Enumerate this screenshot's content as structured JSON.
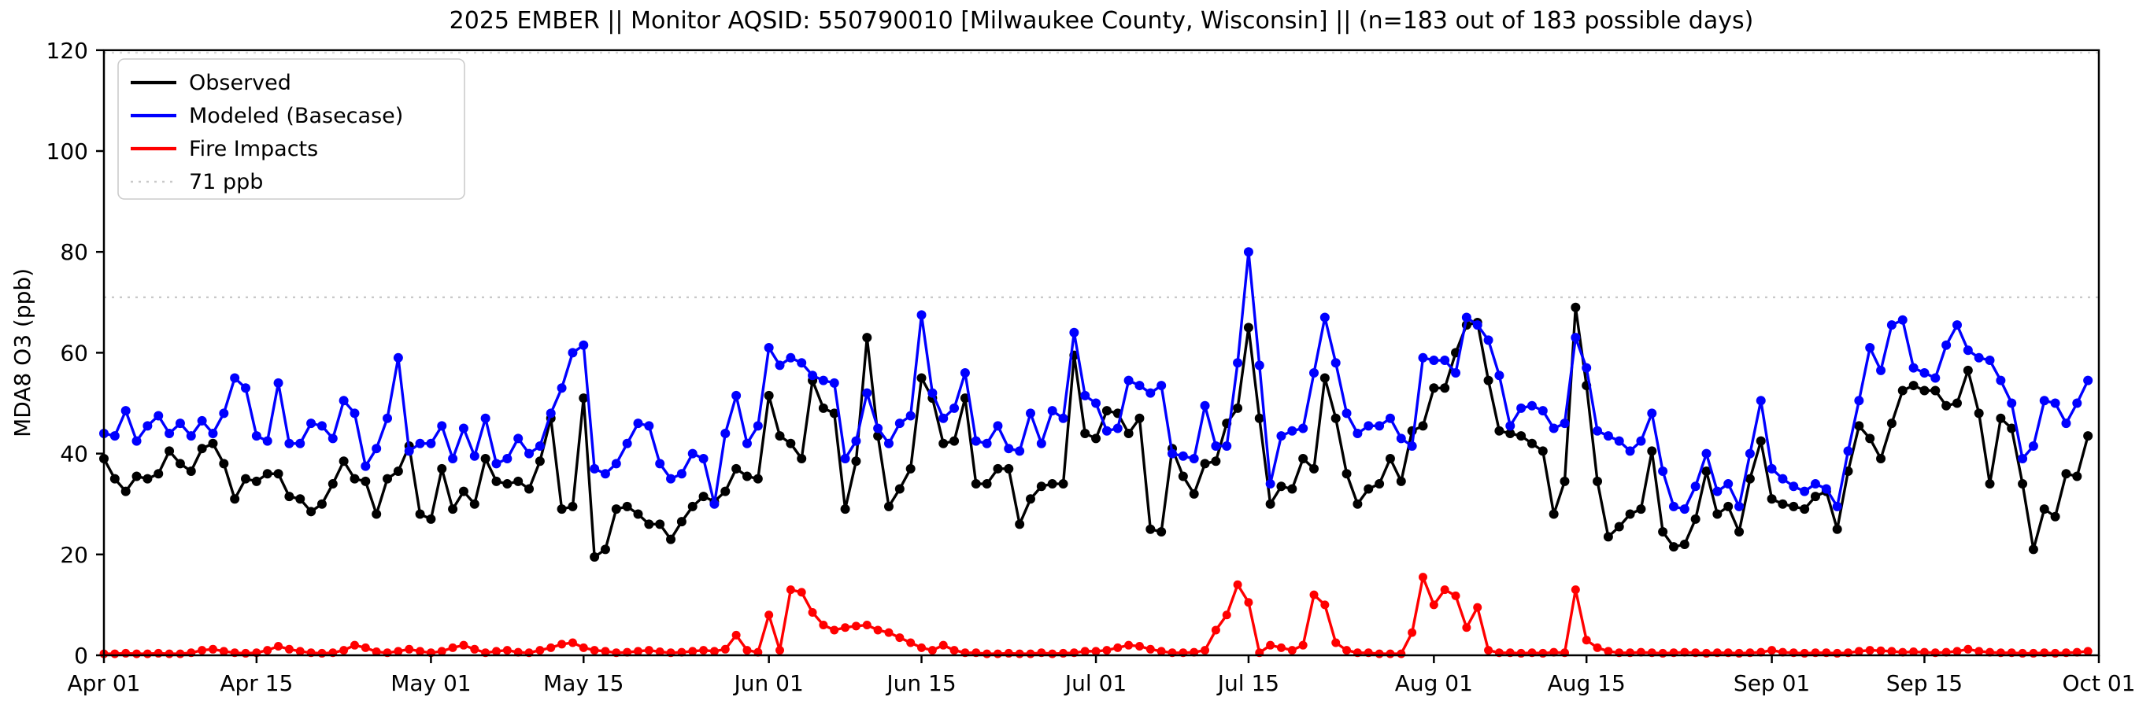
{
  "title": "2025 EMBER || Monitor AQSID: 550790010 [Milwaukee County, Wisconsin] || (n=183 out of 183 possible days)",
  "ylabel": "MDA8 O3 (ppb)",
  "legend": {
    "items": [
      {
        "label": "Observed",
        "color": "#000000",
        "style": "solid"
      },
      {
        "label": "Modeled (Basecase)",
        "color": "#0000ff",
        "style": "solid"
      },
      {
        "label": "Fire Impacts",
        "color": "#ff0000",
        "style": "solid"
      },
      {
        "label": "71 ppb",
        "color": "#c9c9c9",
        "style": "dotted"
      }
    ]
  },
  "chart_data": {
    "type": "line",
    "title": "2025 EMBER || Monitor AQSID: 550790010 [Milwaukee County, Wisconsin] || (n=183 out of 183 possible days)",
    "xlabel": "",
    "ylabel": "MDA8 O3 (ppb)",
    "ylim": [
      0,
      120
    ],
    "yticks": [
      0,
      20,
      40,
      60,
      80,
      100,
      120
    ],
    "x_start_date": "2025-04-01",
    "x_end_date": "2025-09-30",
    "n_days": 183,
    "xticks": [
      {
        "day": 0,
        "label": "Apr 01"
      },
      {
        "day": 14,
        "label": "Apr 15"
      },
      {
        "day": 30,
        "label": "May 01"
      },
      {
        "day": 44,
        "label": "May 15"
      },
      {
        "day": 61,
        "label": "Jun 01"
      },
      {
        "day": 75,
        "label": "Jun 15"
      },
      {
        "day": 91,
        "label": "Jul 01"
      },
      {
        "day": 105,
        "label": "Jul 15"
      },
      {
        "day": 122,
        "label": "Aug 01"
      },
      {
        "day": 136,
        "label": "Aug 15"
      },
      {
        "day": 153,
        "label": "Sep 01"
      },
      {
        "day": 167,
        "label": "Sep 15"
      },
      {
        "day": 183,
        "label": "Oct 01"
      }
    ],
    "threshold_line": {
      "value": 71,
      "label": "71 ppb",
      "color": "#c9c9c9",
      "style": "dotted"
    },
    "top_dotted_line": {
      "value": 119.5,
      "color": "#d9d9d9",
      "style": "dotted"
    },
    "grid": false,
    "legend_position": "upper left",
    "series": [
      {
        "name": "Observed",
        "color": "#000000",
        "values": [
          39,
          35,
          32.5,
          35.5,
          35,
          36,
          40.5,
          38,
          36.5,
          41,
          42,
          38,
          31,
          35,
          34.5,
          36,
          36,
          31.5,
          31,
          28.5,
          30,
          34,
          38.5,
          35,
          34.5,
          28,
          35,
          36.5,
          41.5,
          28,
          27,
          37,
          29,
          32.5,
          30,
          39,
          34.5,
          34,
          34.5,
          33,
          38.5,
          47,
          29,
          29.5,
          51,
          19.5,
          21,
          29,
          29.5,
          28,
          26,
          26,
          23,
          26.5,
          29.5,
          31.5,
          30.5,
          32.5,
          37,
          35.5,
          35,
          51.5,
          43.5,
          42,
          39,
          54.5,
          49,
          48,
          29,
          38.5,
          63,
          43.5,
          29.5,
          33,
          37,
          55,
          51,
          42,
          42.5,
          51,
          34,
          34,
          37,
          37,
          26,
          31,
          33.5,
          34,
          34,
          59.5,
          44,
          43,
          48.5,
          48,
          44,
          47,
          25,
          24.5,
          41,
          35.5,
          32,
          38,
          38.5,
          46,
          49,
          65,
          47,
          30,
          33.5,
          33,
          39,
          37,
          55,
          47,
          36,
          30,
          33,
          34,
          39,
          34.5,
          44.5,
          45.5,
          53,
          53,
          60,
          65.5,
          66,
          54.5,
          44.5,
          44,
          43.5,
          42,
          40.5,
          28,
          34.5,
          69,
          53.5,
          34.5,
          23.5,
          25.5,
          28,
          29,
          40.5,
          24.5,
          21.5,
          22,
          27,
          36.5,
          28,
          29.5,
          24.5,
          35,
          42.5,
          31,
          30,
          29.5,
          29,
          31.5,
          32.5,
          25,
          36.5,
          45.5,
          43,
          39,
          46,
          52.5,
          53.5,
          52.5,
          52.5,
          49.5,
          50,
          56.5,
          48,
          34,
          47,
          45,
          34,
          21,
          29,
          27.5,
          36,
          35.5,
          43.5
        ]
      },
      {
        "name": "Modeled (Basecase)",
        "color": "#0000ff",
        "values": [
          44,
          43.5,
          48.5,
          42.5,
          45.5,
          47.5,
          44,
          46,
          43.5,
          46.5,
          44,
          48,
          55,
          53,
          43.5,
          42.5,
          54,
          42,
          42,
          46,
          45.5,
          43,
          50.5,
          48,
          37.5,
          41,
          47,
          59,
          40.5,
          42,
          42,
          45.5,
          39,
          45,
          39.5,
          47,
          38,
          39,
          43,
          40,
          41.5,
          48,
          53,
          60,
          61.5,
          37,
          36,
          38,
          42,
          46,
          45.5,
          38,
          35,
          36,
          40,
          39,
          30,
          44,
          51.5,
          42,
          45.5,
          61,
          57.5,
          59,
          58,
          55.5,
          54.5,
          54,
          39,
          42.5,
          52,
          45,
          42,
          46,
          47.5,
          67.5,
          52,
          47,
          49,
          56,
          42.5,
          42,
          45.5,
          41,
          40.5,
          48,
          42,
          48.5,
          47,
          64,
          51.5,
          50,
          44.5,
          45,
          54.5,
          53.5,
          52,
          53.5,
          40,
          39.5,
          39,
          49.5,
          41.5,
          41.5,
          58,
          80,
          57.5,
          34,
          43.5,
          44.5,
          45,
          56,
          67,
          58,
          48,
          44,
          45.5,
          45.5,
          47,
          43,
          41.5,
          59,
          58.5,
          58.5,
          56,
          67,
          65.5,
          62.5,
          55.5,
          45.5,
          49,
          49.5,
          48.5,
          45,
          46,
          63,
          57,
          44.5,
          43.5,
          42.5,
          40.5,
          42.5,
          48,
          36.5,
          29.5,
          29,
          33.5,
          40,
          32.5,
          34,
          29.5,
          40,
          50.5,
          37,
          35,
          33.5,
          32.5,
          34,
          33,
          29.5,
          40.5,
          50.5,
          61,
          56.5,
          65.5,
          66.5,
          57,
          56,
          55,
          61.5,
          65.5,
          60.5,
          59,
          58.5,
          54.5,
          50,
          39,
          41.5,
          50.5,
          50,
          46,
          50,
          54.5
        ]
      },
      {
        "name": "Fire Impacts",
        "color": "#ff0000",
        "values": [
          0.3,
          0.3,
          0.4,
          0.3,
          0.3,
          0.4,
          0.3,
          0.3,
          0.5,
          1,
          1.2,
          0.8,
          0.5,
          0.4,
          0.5,
          1,
          1.8,
          1.2,
          0.8,
          0.5,
          0.4,
          0.5,
          1,
          2,
          1.5,
          0.7,
          0.5,
          0.8,
          1.2,
          0.8,
          0.5,
          0.8,
          1.5,
          2,
          1.2,
          0.5,
          0.8,
          1,
          0.6,
          0.5,
          1,
          1.5,
          2.2,
          2.5,
          1.5,
          1,
          0.8,
          0.5,
          0.6,
          0.8,
          1,
          0.7,
          0.5,
          0.6,
          0.8,
          1,
          0.8,
          1.2,
          4,
          1,
          0.6,
          8,
          1,
          13,
          12.5,
          8.5,
          6,
          5,
          5.5,
          5.8,
          6,
          5,
          4.5,
          3.5,
          2.5,
          1.5,
          1,
          2,
          1,
          0.5,
          0.5,
          0.3,
          0.3,
          0.4,
          0.3,
          0.3,
          0.5,
          0.3,
          0.4,
          0.5,
          0.8,
          0.8,
          1,
          1.5,
          2,
          1.8,
          1.2,
          0.8,
          0.5,
          0.5,
          0.6,
          1,
          5,
          8,
          14,
          10.5,
          0.5,
          2,
          1.5,
          1,
          2,
          12,
          10,
          2.5,
          1,
          0.5,
          0.5,
          0.3,
          0.3,
          0.3,
          4.5,
          15.5,
          10,
          13,
          11.8,
          5.5,
          9.5,
          1,
          0.5,
          0.5,
          0.4,
          0.5,
          0.4,
          0.6,
          0.5,
          13,
          3,
          1.5,
          0.8,
          0.5,
          0.5,
          0.6,
          0.5,
          0.4,
          0.5,
          0.6,
          0.5,
          0.4,
          0.5,
          0.5,
          0.4,
          0.5,
          0.6,
          1,
          0.6,
          0.5,
          0.4,
          0.5,
          0.5,
          0.4,
          0.5,
          0.8,
          1,
          0.9,
          0.8,
          0.6,
          0.7,
          0.6,
          0.5,
          0.6,
          0.8,
          1.2,
          0.8,
          0.6,
          0.5,
          0.5,
          0.4,
          0.4,
          0.5,
          0.4,
          0.5,
          0.6,
          0.8
        ]
      }
    ]
  },
  "layout_colors": {
    "background": "#ffffff",
    "spine": "#000000",
    "tick_label": "#000000",
    "legend_border": "#cccccc"
  }
}
